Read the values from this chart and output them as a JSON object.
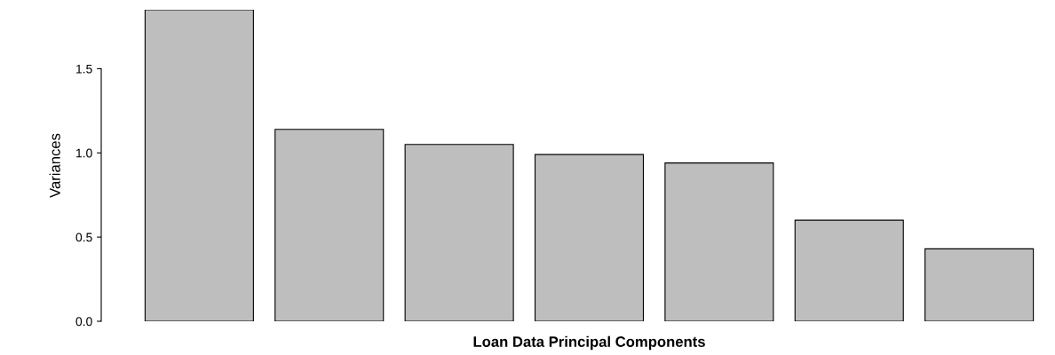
{
  "chart_data": {
    "type": "bar",
    "xlabel": "Loan Data Principal Components",
    "ylabel": "Variances",
    "categories": [
      null,
      null,
      null,
      null,
      null,
      null,
      null
    ],
    "values": [
      1.85,
      1.14,
      1.05,
      0.99,
      0.94,
      0.6,
      0.43
    ],
    "color": "#bebebe",
    "ylim": [
      0,
      1.85
    ],
    "yticks": [
      {
        "value": 0,
        "label": "0.0"
      },
      {
        "value": 0.5,
        "label": "0.5"
      },
      {
        "value": 1.0,
        "label": "1.0"
      },
      {
        "value": 1.5,
        "label": "1.5"
      }
    ],
    "tick_labels": "y",
    "grid": false,
    "legend": false
  }
}
